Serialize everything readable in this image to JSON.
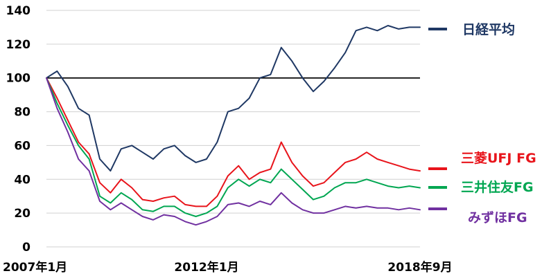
{
  "chart_data": {
    "type": "line",
    "title": "",
    "xlabel": "",
    "ylabel": "",
    "ylim": [
      0,
      140
    ],
    "yticks": [
      0,
      20,
      40,
      60,
      80,
      100,
      120,
      140
    ],
    "x_tick_labels": [
      "2007年1月",
      "2012年1月",
      "2018年9月"
    ],
    "x_tick_dates": [
      "2007-01",
      "2012-01",
      "2018-09"
    ],
    "reference_line": 100,
    "grid": true,
    "legend_placement": "right",
    "x": [
      "2007-01",
      "2007-05",
      "2007-09",
      "2008-01",
      "2008-05",
      "2008-09",
      "2009-01",
      "2009-05",
      "2009-09",
      "2010-01",
      "2010-05",
      "2010-09",
      "2011-01",
      "2011-05",
      "2011-09",
      "2012-01",
      "2012-05",
      "2012-09",
      "2013-01",
      "2013-05",
      "2013-09",
      "2014-01",
      "2014-05",
      "2014-09",
      "2015-01",
      "2015-05",
      "2015-09",
      "2016-01",
      "2016-05",
      "2016-09",
      "2017-01",
      "2017-05",
      "2017-09",
      "2018-01",
      "2018-05",
      "2018-09"
    ],
    "series": [
      {
        "name": "日経平均",
        "color": "#1f3864",
        "values": [
          100,
          104,
          95,
          82,
          78,
          52,
          45,
          58,
          60,
          56,
          52,
          58,
          60,
          54,
          50,
          52,
          62,
          80,
          82,
          88,
          100,
          102,
          118,
          110,
          100,
          92,
          98,
          106,
          115,
          128,
          130,
          128,
          131,
          129,
          130,
          130
        ]
      },
      {
        "name": "三菱UFJ FG",
        "color": "#e8141b",
        "values": [
          100,
          88,
          75,
          62,
          55,
          38,
          32,
          40,
          35,
          28,
          27,
          29,
          30,
          25,
          24,
          24,
          30,
          42,
          48,
          40,
          44,
          46,
          62,
          50,
          42,
          36,
          38,
          44,
          50,
          52,
          56,
          52,
          50,
          48,
          46,
          45
        ]
      },
      {
        "name": "三井住友FG",
        "color": "#00a651",
        "values": [
          100,
          85,
          72,
          60,
          52,
          30,
          26,
          32,
          28,
          22,
          21,
          24,
          24,
          20,
          18,
          20,
          24,
          35,
          40,
          36,
          40,
          38,
          46,
          40,
          34,
          28,
          30,
          35,
          38,
          38,
          40,
          38,
          36,
          35,
          36,
          35
        ]
      },
      {
        "name": "みずほFG",
        "color": "#7030a0",
        "values": [
          100,
          82,
          68,
          52,
          45,
          27,
          22,
          26,
          22,
          18,
          16,
          19,
          18,
          15,
          13,
          15,
          18,
          25,
          26,
          24,
          27,
          25,
          32,
          26,
          22,
          20,
          20,
          22,
          24,
          23,
          24,
          23,
          23,
          22,
          23,
          22
        ]
      }
    ]
  }
}
